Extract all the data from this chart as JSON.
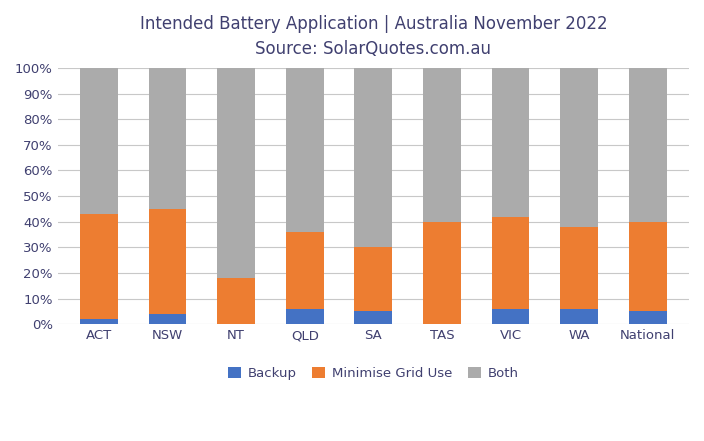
{
  "categories": [
    "ACT",
    "NSW",
    "NT",
    "QLD",
    "SA",
    "TAS",
    "VIC",
    "WA",
    "National"
  ],
  "backup": [
    2,
    4,
    0,
    6,
    5,
    0,
    6,
    6,
    5
  ],
  "minimise_grid": [
    41,
    41,
    18,
    30,
    25,
    40,
    36,
    32,
    35
  ],
  "both": [
    57,
    55,
    82,
    64,
    70,
    60,
    58,
    62,
    60
  ],
  "backup_color": "#4472C4",
  "minimise_color": "#ED7D31",
  "both_color": "#ABABAB",
  "title_line1": "Intended Battery Application | Australia November 2022",
  "title_line2": "Source: SolarQuotes.com.au",
  "legend_labels": [
    "Backup",
    "Minimise Grid Use",
    "Both"
  ],
  "ylabel_ticks": [
    "0%",
    "10%",
    "20%",
    "30%",
    "40%",
    "50%",
    "60%",
    "70%",
    "80%",
    "90%",
    "100%"
  ],
  "bg_color": "#FFFFFF",
  "grid_color": "#C8C8C8",
  "title_color": "#404070",
  "title_fontsize": 12,
  "tick_fontsize": 9.5,
  "legend_fontsize": 9.5,
  "bar_width": 0.55
}
